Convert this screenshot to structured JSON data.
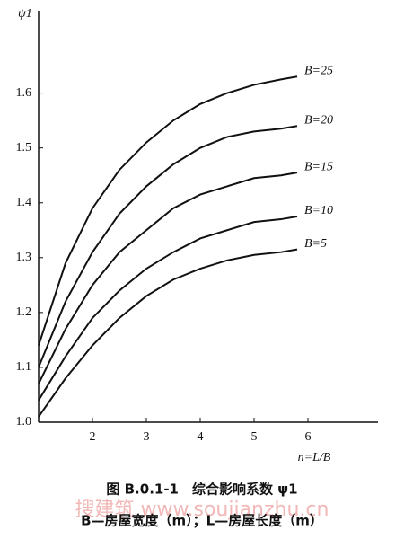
{
  "chart_data": {
    "type": "line",
    "y_label": "ψ1",
    "x_label": "n=L/B",
    "caption": "图 B.0.1-1　综合影响系数 ψ1",
    "note": "B—房屋宽度（m）；L—房屋长度（m）",
    "watermark": "搜建筑 www.soujianzhu.cn",
    "x": [
      1,
      1.5,
      2,
      2.5,
      3,
      3.5,
      4,
      4.5,
      5,
      5.5,
      5.8
    ],
    "series": [
      {
        "name": "B=25",
        "color": "#111111",
        "values": [
          1.14,
          1.29,
          1.39,
          1.46,
          1.51,
          1.55,
          1.58,
          1.6,
          1.615,
          1.625,
          1.63
        ]
      },
      {
        "name": "B=20",
        "color": "#111111",
        "values": [
          1.1,
          1.22,
          1.31,
          1.38,
          1.43,
          1.47,
          1.5,
          1.52,
          1.53,
          1.535,
          1.54
        ]
      },
      {
        "name": "B=15",
        "color": "#111111",
        "values": [
          1.07,
          1.17,
          1.25,
          1.31,
          1.35,
          1.39,
          1.415,
          1.43,
          1.445,
          1.45,
          1.455
        ]
      },
      {
        "name": "B=10",
        "color": "#111111",
        "values": [
          1.04,
          1.12,
          1.19,
          1.24,
          1.28,
          1.31,
          1.335,
          1.35,
          1.365,
          1.37,
          1.375
        ]
      },
      {
        "name": "B=5",
        "color": "#111111",
        "values": [
          1.01,
          1.08,
          1.14,
          1.19,
          1.23,
          1.26,
          1.28,
          1.295,
          1.305,
          1.31,
          1.315
        ]
      }
    ],
    "xlim": [
      1,
      7.3
    ],
    "ylim": [
      1.0,
      1.75
    ],
    "xticks": [
      2,
      3,
      4,
      5,
      6
    ],
    "yticks": [
      {
        "value": 1,
        "label": "1.0"
      },
      1.1,
      1.2,
      1.3,
      1.4,
      1.5,
      1.6
    ],
    "grid": false
  }
}
